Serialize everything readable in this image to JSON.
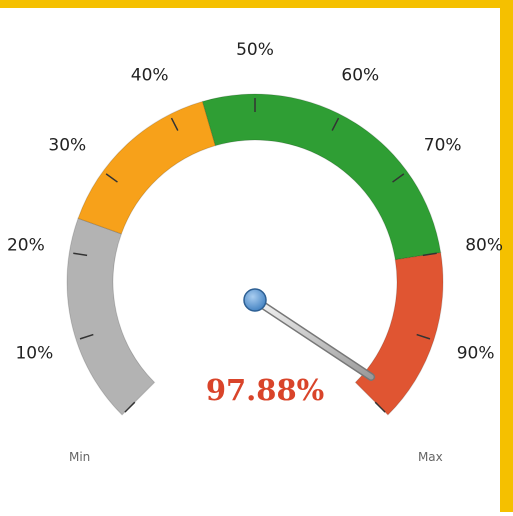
{
  "chart_data": {
    "type": "gauge",
    "value": 97.88,
    "value_label": "97.88%",
    "range": [
      0,
      100
    ],
    "ticks": [
      {
        "value": 0,
        "label": "Min"
      },
      {
        "value": 10,
        "label": "10%"
      },
      {
        "value": 20,
        "label": "20%"
      },
      {
        "value": 30,
        "label": "30%"
      },
      {
        "value": 40,
        "label": "40%"
      },
      {
        "value": 50,
        "label": "50%"
      },
      {
        "value": 60,
        "label": "60%"
      },
      {
        "value": 70,
        "label": "70%"
      },
      {
        "value": 80,
        "label": "80%"
      },
      {
        "value": 90,
        "label": "90%"
      },
      {
        "value": 100,
        "label": "Max"
      }
    ],
    "bands": [
      {
        "from": 0,
        "to": 24,
        "color": "#b3b3b3"
      },
      {
        "from": 24,
        "to": 44,
        "color": "#f7a11a"
      },
      {
        "from": 44,
        "to": 80,
        "color": "#2f9e34"
      },
      {
        "from": 80,
        "to": 100,
        "color": "#e05532"
      }
    ],
    "value_color": "#d9442a"
  }
}
